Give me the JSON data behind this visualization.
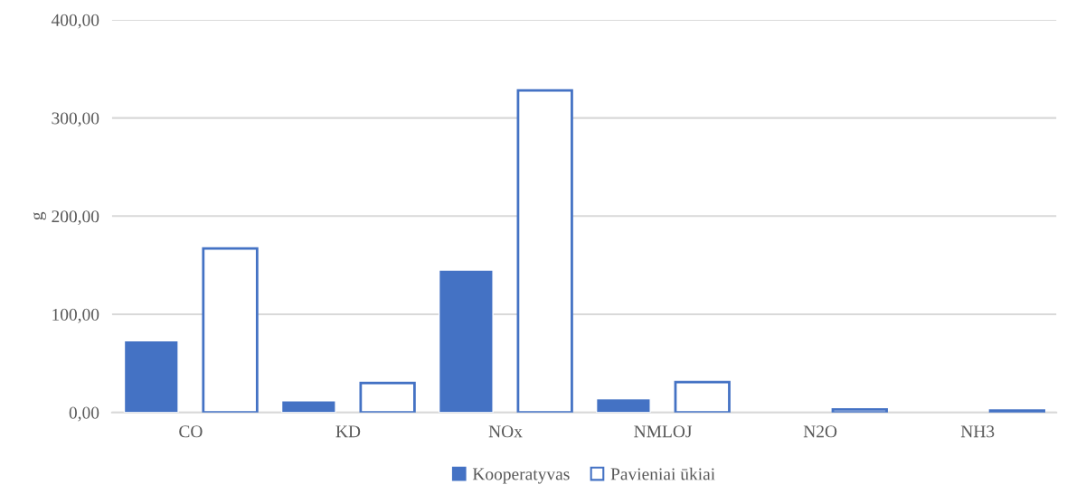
{
  "chart_data": {
    "type": "bar",
    "ylabel": "g",
    "categories": [
      "CO",
      "KD",
      "NOx",
      "NMLOJ",
      "N2O",
      "NH3"
    ],
    "series": [
      {
        "name": "Kooperatyvas",
        "color": "#4472c4",
        "values": [
          73,
          12,
          145,
          14,
          null,
          null
        ]
      },
      {
        "name": "Pavieniai ūkiai",
        "color": "#4472c4",
        "values": [
          167,
          30,
          328,
          31,
          3,
          2
        ]
      }
    ],
    "ylim": [
      0,
      400
    ],
    "yticks": [
      {
        "value": 0,
        "label": "0,00"
      },
      {
        "value": 100,
        "label": "100,00"
      },
      {
        "value": 200,
        "label": "200,00"
      },
      {
        "value": 300,
        "label": "300,00"
      },
      {
        "value": 400,
        "label": "400,00"
      }
    ],
    "grid": "y",
    "legend": "bottom"
  }
}
